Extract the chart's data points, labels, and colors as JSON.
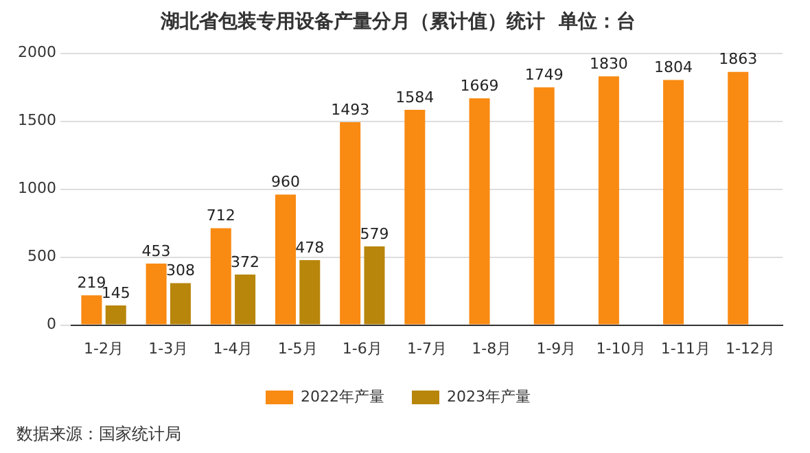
{
  "chart_data": {
    "type": "bar",
    "title": "湖北省包装专用设备产量分月（累计值）统计  单位：台",
    "categories": [
      "1-2月",
      "1-3月",
      "1-4月",
      "1-5月",
      "1-6月",
      "1-7月",
      "1-8月",
      "1-9月",
      "1-10月",
      "1-11月",
      "1-12月"
    ],
    "series": [
      {
        "name": "2022年产量",
        "color": "#f98a12",
        "values": [
          219,
          453,
          712,
          960,
          1493,
          1584,
          1669,
          1749,
          1830,
          1804,
          1863
        ]
      },
      {
        "name": "2023年产量",
        "color": "#b8860b",
        "values": [
          145,
          308,
          372,
          478,
          579,
          null,
          null,
          null,
          null,
          null,
          null
        ]
      }
    ],
    "ylim": [
      0,
      2000
    ],
    "yticks": [
      0,
      500,
      1000,
      1500,
      2000
    ],
    "grid": "y",
    "legend": "bottom",
    "data_labels": true,
    "annotations": [
      "数据来源：国家统计局"
    ]
  }
}
